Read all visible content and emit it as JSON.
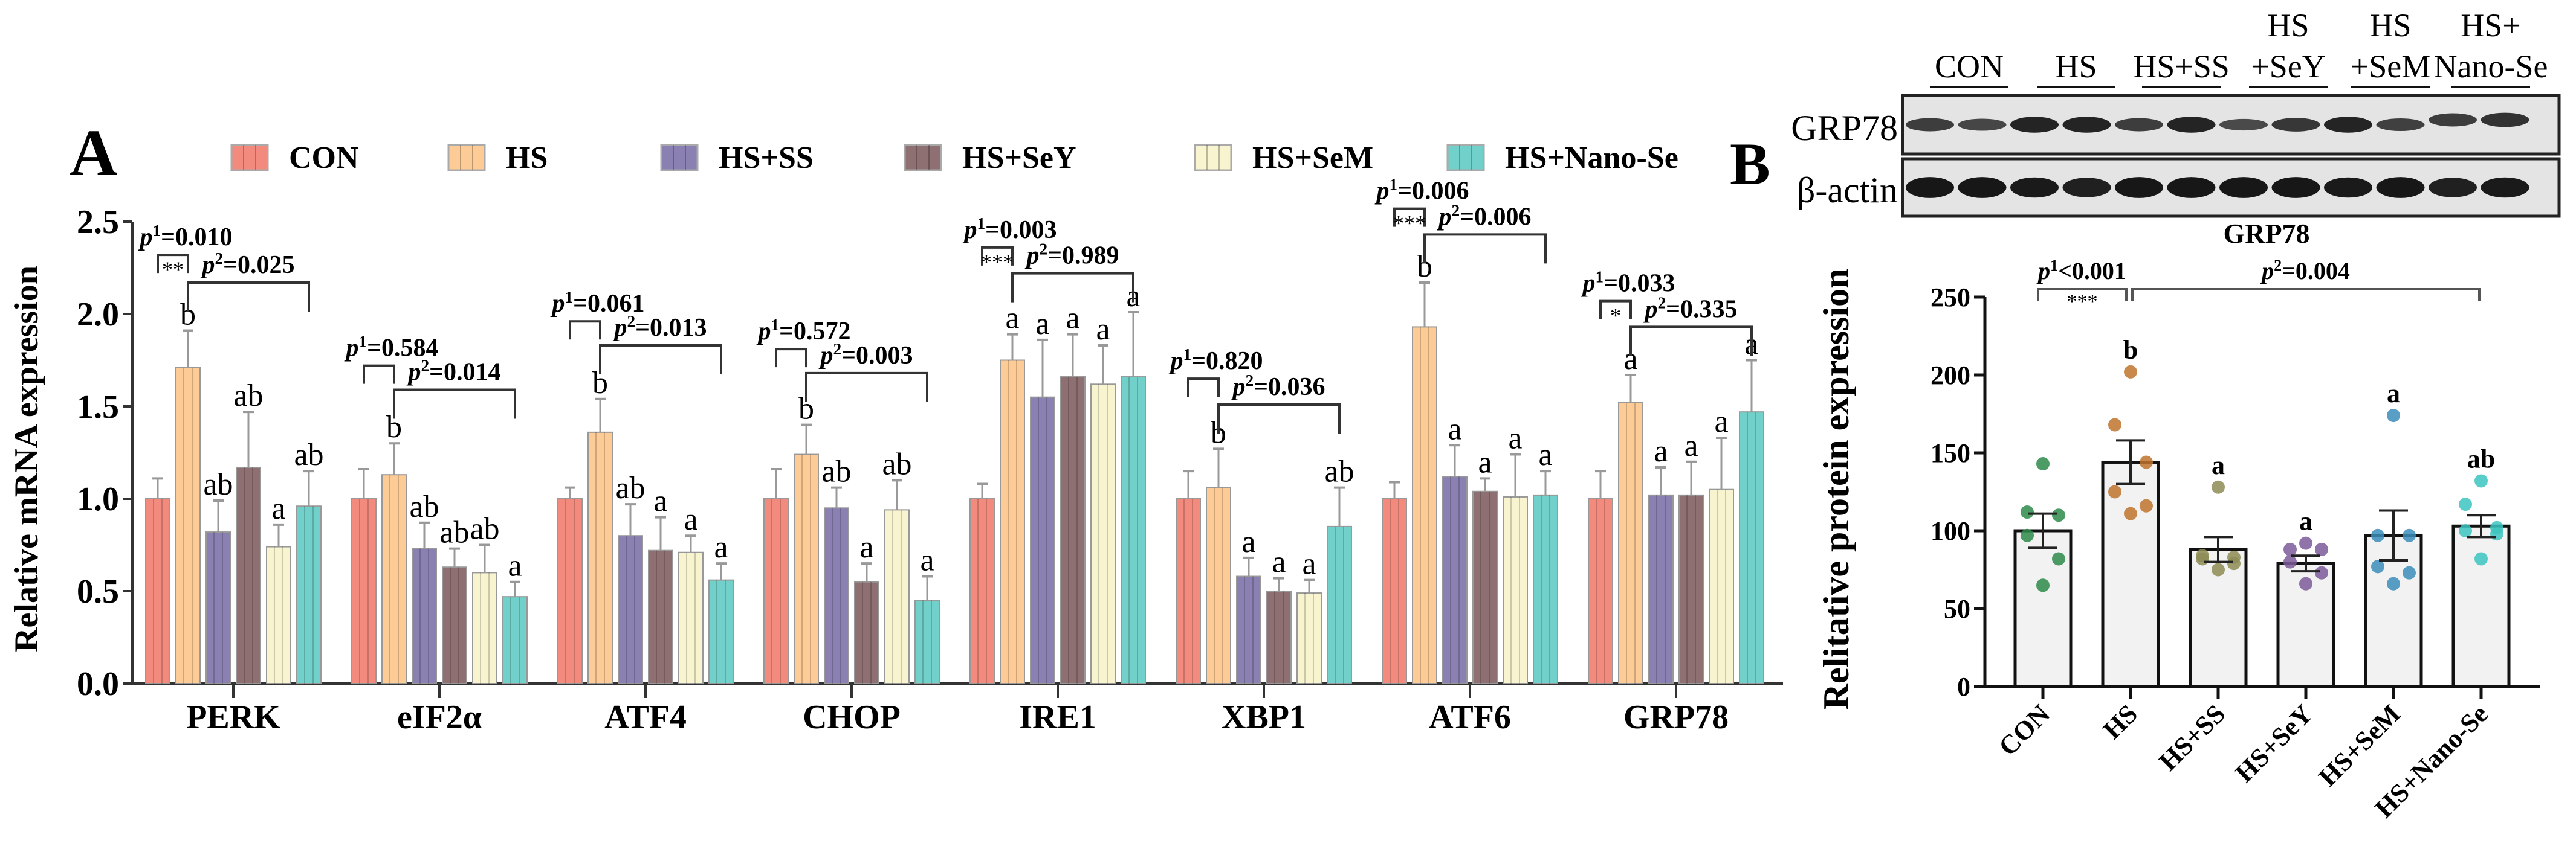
{
  "chart_data": [
    {
      "type": "bar",
      "panel_label": "A",
      "title": "",
      "xlabel": "",
      "ylabel": "Relative mRNA expression",
      "ylim": [
        0,
        2.5
      ],
      "yticks": [
        "0.0",
        "0.5",
        "1.0",
        "1.5",
        "2.0",
        "2.5"
      ],
      "legend": "top",
      "categories": [
        "PERK",
        "eIF2α",
        "ATF4",
        "CHOP",
        "IRE1",
        "XBP1",
        "ATF6",
        "GRP78"
      ],
      "series": [
        {
          "name": "CON",
          "color": "#F28B7E",
          "values": [
            1.0,
            1.0,
            1.0,
            1.0,
            1.0,
            1.0,
            1.0,
            1.0
          ],
          "error_top": [
            1.11,
            1.16,
            1.06,
            1.16,
            1.08,
            1.15,
            1.09,
            1.15
          ],
          "letters": [
            "",
            "",
            "",
            "",
            "",
            "",
            "",
            ""
          ]
        },
        {
          "name": "HS",
          "color": "#FDCB95",
          "values": [
            1.71,
            1.13,
            1.36,
            1.24,
            1.75,
            1.06,
            1.93,
            1.52
          ],
          "error_top": [
            1.91,
            1.3,
            1.54,
            1.4,
            1.89,
            1.27,
            2.17,
            1.67
          ],
          "letters": [
            "b",
            "b",
            "b",
            "b",
            "a",
            "b",
            "b",
            "a"
          ]
        },
        {
          "name": "HS+SS",
          "color": "#8A80B2",
          "values": [
            0.82,
            0.73,
            0.8,
            0.95,
            1.55,
            0.58,
            1.12,
            1.02
          ],
          "error_top": [
            0.99,
            0.87,
            0.97,
            1.06,
            1.86,
            0.68,
            1.29,
            1.17
          ],
          "letters": [
            "ab",
            "ab",
            "ab",
            "ab",
            "a",
            "a",
            "a",
            "a"
          ]
        },
        {
          "name": "HS+SeY",
          "color": "#8F7072",
          "values": [
            1.17,
            0.63,
            0.72,
            0.55,
            1.66,
            0.5,
            1.04,
            1.02
          ],
          "error_top": [
            1.47,
            0.73,
            0.9,
            0.65,
            1.89,
            0.57,
            1.11,
            1.2
          ],
          "letters": [
            "ab",
            "ab",
            "a",
            "a",
            "a",
            "a",
            "a",
            "a"
          ]
        },
        {
          "name": "HS+SeM",
          "color": "#F7F4CF",
          "values": [
            0.74,
            0.6,
            0.71,
            0.94,
            1.62,
            0.49,
            1.01,
            1.05
          ],
          "error_top": [
            0.86,
            0.75,
            0.8,
            1.1,
            1.83,
            0.56,
            1.24,
            1.33
          ],
          "letters": [
            "a",
            "ab",
            "a",
            "ab",
            "a",
            "a",
            "a",
            "a"
          ]
        },
        {
          "name": "HS+Nano-Se",
          "color": "#72D0CA",
          "values": [
            0.96,
            0.47,
            0.56,
            0.45,
            1.66,
            0.85,
            1.02,
            1.47
          ],
          "error_top": [
            1.15,
            0.55,
            0.65,
            0.58,
            2.01,
            1.06,
            1.15,
            1.75
          ],
          "letters": [
            "ab",
            "a",
            "a",
            "a",
            "a",
            "ab",
            "a",
            "a"
          ]
        }
      ],
      "p_symbol": "p",
      "p1_sup": "1",
      "p2_sup": "2",
      "significance": [
        {
          "p1": "=0.010",
          "stars": "**",
          "p2": "=0.025",
          "p1_y": 2.32,
          "p2_y": 2.17
        },
        {
          "p1": "=0.584",
          "stars": "",
          "p2": "=0.014",
          "p1_y": 1.72,
          "p2_y": 1.59
        },
        {
          "p1": "=0.061",
          "stars": "",
          "p2": "=0.013",
          "p1_y": 1.96,
          "p2_y": 1.83
        },
        {
          "p1": "=0.572",
          "stars": "",
          "p2": "=0.003",
          "p1_y": 1.81,
          "p2_y": 1.68
        },
        {
          "p1": "=0.003",
          "stars": "***",
          "p2": "=0.989",
          "p1_y": 2.36,
          "p2_y": 2.22
        },
        {
          "p1": "=0.820",
          "stars": "",
          "p2": "=0.036",
          "p1_y": 1.65,
          "p2_y": 1.51
        },
        {
          "p1": "=0.006",
          "stars": "***",
          "p2": "=0.006",
          "p1_y": 2.57,
          "p2_y": 2.43
        },
        {
          "p1": "=0.033",
          "stars": "*",
          "p2": "=0.335",
          "p1_y": 2.07,
          "p2_y": 1.93
        }
      ]
    },
    {
      "type": "bar",
      "panel_label": "B",
      "title": "GRP78",
      "xlabel": "",
      "ylabel": "Relitative protein expression",
      "ylim": [
        0,
        250
      ],
      "yticks": [
        "0",
        "50",
        "100",
        "150",
        "200",
        "250"
      ],
      "categories": [
        "CON",
        "HS",
        "HS+SS",
        "HS+SeY",
        "HS+SeM",
        "HS+Nano-Se"
      ],
      "values": [
        100,
        144,
        88,
        79,
        97,
        103
      ],
      "sem": [
        11,
        14,
        8,
        5,
        16,
        7
      ],
      "letters": [
        "",
        "b",
        "a",
        "a",
        "a",
        "ab"
      ],
      "point_colors": [
        "#2E8B4A",
        "#C0742D",
        "#8E8C55",
        "#7B5A9A",
        "#3C8DBB",
        "#3CC4BF"
      ],
      "points": [
        [
          143,
          112,
          110,
          97,
          82,
          65
        ],
        [
          202,
          168,
          144,
          125,
          116,
          111
        ],
        [
          128,
          84,
          83,
          82,
          79,
          75
        ],
        [
          92,
          88,
          88,
          80,
          73,
          66
        ],
        [
          174,
          97,
          97,
          77,
          73,
          66
        ],
        [
          132,
          117,
          102,
          100,
          98,
          82
        ]
      ],
      "p_symbol": "p",
      "p1_sup": "1",
      "p2_sup": "2",
      "p1": "<0.001",
      "stars": "***",
      "p2": "=0.004"
    }
  ],
  "blot": {
    "rows": [
      "GRP78",
      "β-actin"
    ],
    "lane_groups": [
      [
        "CON"
      ],
      [
        "HS"
      ],
      [
        "HS+SS"
      ],
      [
        "HS",
        "+SeY"
      ],
      [
        "HS",
        "+SeM"
      ],
      [
        "HS+",
        "Nano-Se"
      ]
    ]
  }
}
